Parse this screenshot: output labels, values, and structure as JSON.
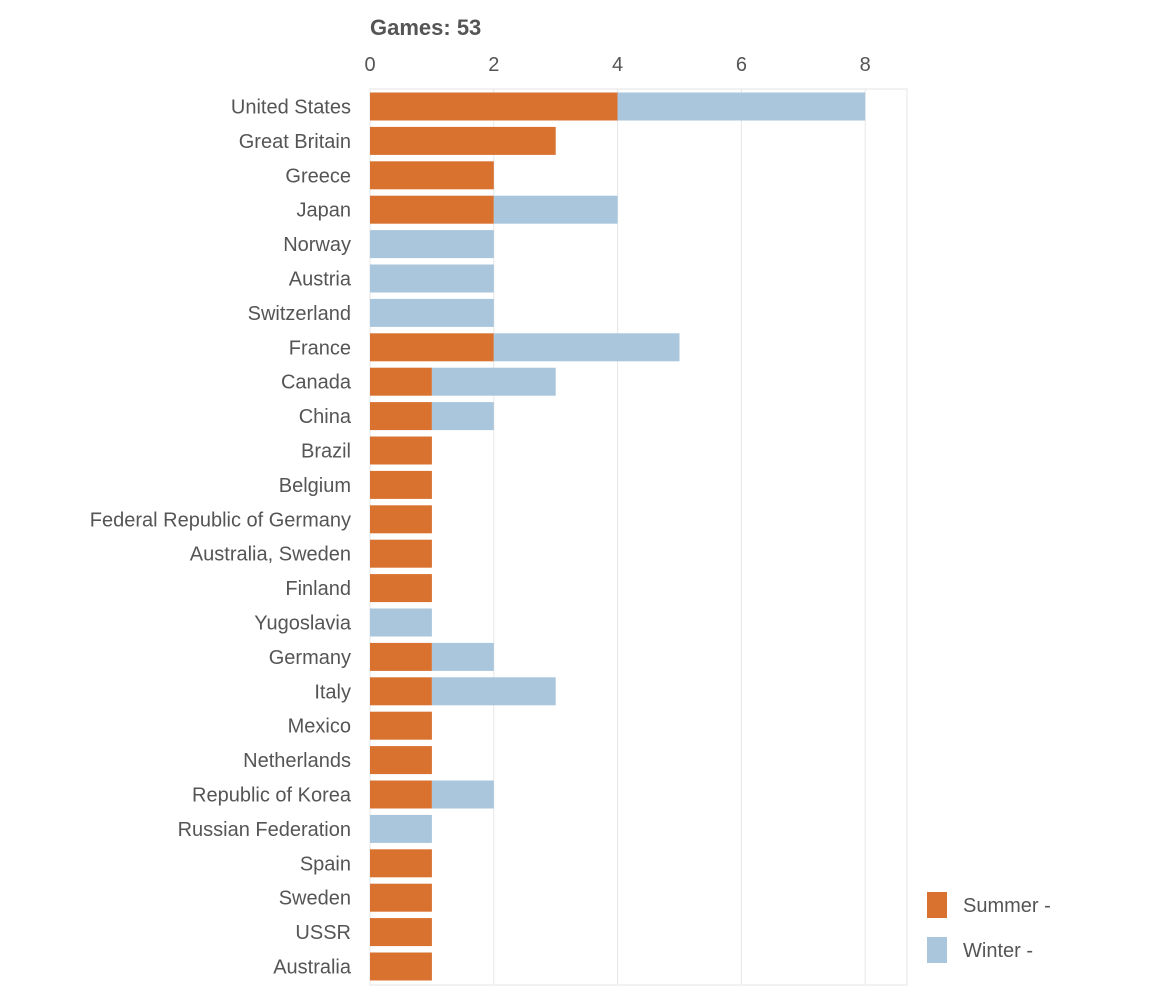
{
  "chart_data": {
    "type": "bar",
    "orientation": "horizontal",
    "stacked": true,
    "title": "Games: 53",
    "xlabel": "",
    "ylabel": "",
    "xlim": [
      0,
      8.7
    ],
    "x_ticks": [
      0,
      2,
      4,
      6,
      8
    ],
    "grid": true,
    "legend_position": "bottom-right",
    "categories": [
      "United States",
      "Great Britain",
      "Greece",
      "Japan",
      "Norway",
      "Austria",
      "Switzerland",
      "France",
      "Canada",
      "China",
      "Brazil",
      "Belgium",
      "Federal Republic of Germany",
      "Australia, Sweden",
      "Finland",
      "Yugoslavia",
      "Germany",
      "Italy",
      "Mexico",
      "Netherlands",
      "Republic of Korea",
      "Russian Federation",
      "Spain",
      "Sweden",
      "USSR",
      "Australia"
    ],
    "series": [
      {
        "name": "Summer -",
        "color": "#d9712f",
        "values": [
          4,
          3,
          2,
          2,
          0,
          0,
          0,
          2,
          1,
          1,
          1,
          1,
          1,
          1,
          1,
          0,
          1,
          1,
          1,
          1,
          1,
          0,
          1,
          1,
          1,
          1
        ]
      },
      {
        "name": "Winter -",
        "color": "#a9c6dd",
        "values": [
          4,
          0,
          0,
          2,
          2,
          2,
          2,
          3,
          2,
          1,
          0,
          0,
          0,
          0,
          0,
          1,
          1,
          2,
          0,
          0,
          1,
          1,
          0,
          0,
          0,
          0
        ]
      }
    ]
  }
}
